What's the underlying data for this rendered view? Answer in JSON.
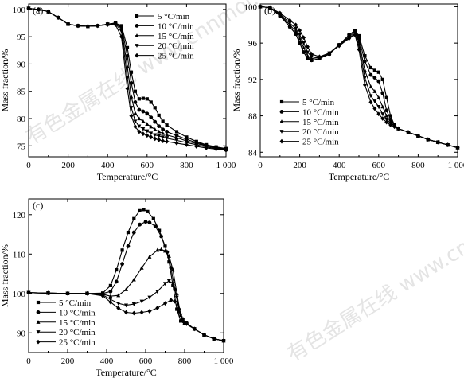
{
  "watermark": "有色金属在线 www.cnnmol.com",
  "chart_data": [
    {
      "type": "line",
      "panel_label": "(a)",
      "xlabel": "Temperature/°C",
      "ylabel": "Mass fraction/%",
      "xlim": [
        0,
        1000
      ],
      "ylim": [
        73,
        101
      ],
      "x_ticks": [
        "0",
        "200",
        "400",
        "600",
        "800",
        "1 000"
      ],
      "y_ticks": [
        "75",
        "80",
        "85",
        "90",
        "95",
        "100"
      ],
      "legend_position": "top-right",
      "series": [
        {
          "name": "5 °C/min",
          "marker": "square",
          "x": [
            0,
            50,
            100,
            150,
            200,
            250,
            300,
            350,
            400,
            440,
            470,
            500,
            520,
            540,
            560,
            580,
            600,
            620,
            640,
            660,
            680,
            700,
            750,
            800,
            850,
            900,
            950,
            1000
          ],
          "y": [
            100.2,
            100.0,
            99.6,
            98.5,
            97.3,
            97.0,
            96.9,
            97.0,
            97.3,
            97.5,
            97.0,
            93.0,
            88.5,
            85.0,
            83.6,
            83.7,
            83.6,
            83.0,
            82.0,
            80.6,
            79.5,
            78.8,
            77.6,
            76.6,
            75.8,
            75.2,
            74.8,
            74.5
          ]
        },
        {
          "name": "10 °C/min",
          "marker": "circle",
          "x": [
            0,
            50,
            100,
            150,
            200,
            250,
            300,
            350,
            400,
            440,
            470,
            500,
            520,
            540,
            560,
            580,
            600,
            620,
            640,
            660,
            680,
            700,
            750,
            800,
            850,
            900,
            950,
            1000
          ],
          "y": [
            100.2,
            100.0,
            99.6,
            98.5,
            97.3,
            97.0,
            96.9,
            97.0,
            97.3,
            97.5,
            96.8,
            91.5,
            86.5,
            83.0,
            81.6,
            81.3,
            80.9,
            80.2,
            79.4,
            78.6,
            78.0,
            77.6,
            76.9,
            76.2,
            75.6,
            75.1,
            74.7,
            74.4
          ]
        },
        {
          "name": "15 °C/min",
          "marker": "triangle-up",
          "x": [
            0,
            50,
            100,
            150,
            200,
            250,
            300,
            350,
            400,
            440,
            470,
            500,
            520,
            540,
            560,
            580,
            600,
            620,
            640,
            660,
            680,
            700,
            750,
            800,
            850,
            900,
            950,
            1000
          ],
          "y": [
            100.2,
            100.0,
            99.6,
            98.5,
            97.3,
            97.0,
            96.9,
            97.0,
            97.3,
            97.5,
            96.5,
            89.5,
            84.0,
            81.0,
            80.0,
            79.5,
            79.0,
            78.5,
            78.0,
            77.6,
            77.3,
            77.0,
            76.5,
            75.9,
            75.4,
            75.0,
            74.6,
            74.3
          ]
        },
        {
          "name": "20 °C/min",
          "marker": "triangle-down",
          "x": [
            0,
            50,
            100,
            150,
            200,
            250,
            300,
            350,
            400,
            440,
            470,
            500,
            520,
            540,
            560,
            580,
            600,
            620,
            640,
            660,
            680,
            700,
            750,
            800,
            850,
            900,
            950,
            1000
          ],
          "y": [
            100.2,
            100.0,
            99.6,
            98.5,
            97.3,
            97.0,
            96.9,
            97.0,
            97.3,
            97.4,
            96.0,
            87.5,
            82.0,
            79.5,
            78.6,
            78.1,
            77.7,
            77.3,
            77.0,
            76.8,
            76.6,
            76.4,
            76.0,
            75.6,
            75.2,
            74.8,
            74.5,
            74.2
          ]
        },
        {
          "name": "25 °C/min",
          "marker": "diamond",
          "x": [
            0,
            50,
            100,
            150,
            200,
            250,
            300,
            350,
            400,
            440,
            470,
            500,
            520,
            540,
            560,
            580,
            600,
            620,
            640,
            660,
            680,
            700,
            750,
            800,
            850,
            900,
            950,
            1000
          ],
          "y": [
            100.2,
            100.0,
            99.6,
            98.5,
            97.3,
            97.0,
            96.9,
            97.0,
            97.2,
            97.2,
            95.0,
            85.5,
            80.5,
            78.5,
            77.6,
            77.2,
            76.9,
            76.6,
            76.3,
            76.1,
            75.9,
            75.8,
            75.5,
            75.2,
            74.9,
            74.6,
            74.4,
            74.2
          ]
        }
      ]
    },
    {
      "type": "line",
      "panel_label": "(b)",
      "xlabel": "Temperature/°C",
      "ylabel": "Mass fraction/%",
      "xlim": [
        0,
        1000
      ],
      "ylim": [
        83.5,
        100.3
      ],
      "x_ticks": [
        "0",
        "200",
        "400",
        "600",
        "800",
        "1 000"
      ],
      "y_ticks": [
        "84",
        "88",
        "92",
        "96",
        "100"
      ],
      "legend_position": "bottom-left",
      "series": [
        {
          "name": "5 °C/min",
          "marker": "square",
          "x": [
            0,
            50,
            100,
            150,
            180,
            200,
            220,
            240,
            260,
            300,
            350,
            400,
            450,
            480,
            500,
            530,
            560,
            580,
            600,
            620,
            640,
            660,
            680,
            700,
            750,
            800,
            850,
            900,
            950,
            1000
          ],
          "y": [
            100.0,
            99.9,
            99.0,
            97.8,
            97.0,
            96.0,
            95.0,
            94.3,
            94.1,
            94.3,
            94.8,
            95.8,
            96.9,
            97.4,
            96.8,
            94.6,
            93.3,
            93.0,
            92.8,
            92.0,
            90.0,
            88.0,
            87.0,
            86.6,
            86.2,
            85.8,
            85.4,
            85.1,
            84.8,
            84.5
          ]
        },
        {
          "name": "10 °C/min",
          "marker": "circle",
          "x": [
            0,
            50,
            100,
            150,
            180,
            200,
            220,
            240,
            260,
            300,
            350,
            400,
            450,
            480,
            500,
            530,
            560,
            580,
            600,
            620,
            640,
            660,
            680,
            700,
            750,
            800,
            850,
            900,
            950,
            1000
          ],
          "y": [
            100.0,
            99.9,
            99.0,
            97.8,
            97.0,
            96.0,
            95.0,
            94.3,
            94.1,
            94.3,
            94.8,
            95.8,
            96.9,
            97.3,
            96.5,
            94.0,
            92.5,
            92.2,
            91.8,
            90.5,
            88.6,
            87.6,
            87.0,
            86.6,
            86.2,
            85.8,
            85.4,
            85.1,
            84.8,
            84.5
          ]
        },
        {
          "name": "15 °C/min",
          "marker": "triangle-up",
          "x": [
            0,
            50,
            100,
            150,
            180,
            200,
            220,
            240,
            260,
            300,
            350,
            400,
            450,
            480,
            500,
            530,
            560,
            580,
            600,
            620,
            640,
            660,
            680,
            700,
            750,
            800,
            850,
            900,
            950,
            1000
          ],
          "y": [
            100.0,
            99.9,
            99.1,
            98.0,
            97.3,
            96.5,
            95.5,
            94.6,
            94.3,
            94.4,
            94.9,
            95.8,
            96.7,
            97.2,
            96.2,
            93.0,
            91.2,
            90.7,
            90.0,
            89.0,
            88.0,
            87.4,
            87.0,
            86.6,
            86.2,
            85.8,
            85.4,
            85.1,
            84.8,
            84.5
          ]
        },
        {
          "name": "20 °C/min",
          "marker": "triangle-down",
          "x": [
            0,
            50,
            100,
            150,
            180,
            200,
            220,
            240,
            260,
            300,
            350,
            400,
            450,
            480,
            500,
            530,
            560,
            580,
            600,
            620,
            640,
            660,
            680,
            700,
            750,
            800,
            850,
            900,
            950,
            1000
          ],
          "y": [
            100.0,
            99.9,
            99.2,
            98.2,
            97.6,
            96.9,
            96.0,
            95.0,
            94.5,
            94.4,
            94.9,
            95.8,
            96.6,
            97.0,
            95.8,
            92.2,
            90.2,
            89.6,
            89.0,
            88.2,
            87.6,
            87.2,
            86.9,
            86.6,
            86.2,
            85.8,
            85.4,
            85.1,
            84.8,
            84.5
          ]
        },
        {
          "name": "25 °C/min",
          "marker": "diamond",
          "x": [
            0,
            50,
            100,
            150,
            180,
            200,
            220,
            240,
            260,
            300,
            350,
            400,
            450,
            480,
            500,
            530,
            560,
            580,
            600,
            620,
            640,
            660,
            680,
            700,
            750,
            800,
            850,
            900,
            950,
            1000
          ],
          "y": [
            100.0,
            99.9,
            99.3,
            98.5,
            98.0,
            97.4,
            96.6,
            95.6,
            94.8,
            94.5,
            94.9,
            95.7,
            96.5,
            96.9,
            95.3,
            91.4,
            89.5,
            88.8,
            88.2,
            87.7,
            87.3,
            87.0,
            86.8,
            86.6,
            86.2,
            85.8,
            85.4,
            85.1,
            84.8,
            84.5
          ]
        }
      ]
    },
    {
      "type": "line",
      "panel_label": "(c)",
      "xlabel": "Temperature/°C",
      "ylabel": "Mass fraction/%",
      "xlim": [
        0,
        1000
      ],
      "ylim": [
        85,
        124
      ],
      "x_ticks": [
        "0",
        "200",
        "400",
        "600",
        "800",
        "1 000"
      ],
      "y_ticks": [
        "90",
        "100",
        "110",
        "120"
      ],
      "legend_position": "bottom-left",
      "series": [
        {
          "name": "5 °C/min",
          "marker": "square",
          "x": [
            0,
            100,
            200,
            300,
            380,
            420,
            450,
            480,
            510,
            540,
            570,
            590,
            610,
            640,
            670,
            700,
            720,
            740,
            760,
            780,
            800,
            850,
            900,
            950,
            1000
          ],
          "y": [
            100.2,
            100.1,
            100.0,
            100.0,
            100.1,
            102.0,
            106.0,
            111.0,
            115.5,
            119.0,
            121.0,
            121.3,
            120.8,
            119.0,
            116.0,
            112.0,
            108.0,
            102.0,
            96.0,
            93.0,
            92.5,
            91.0,
            89.5,
            88.5,
            88.0
          ]
        },
        {
          "name": "10 °C/min",
          "marker": "circle",
          "x": [
            0,
            100,
            200,
            300,
            380,
            420,
            450,
            480,
            510,
            540,
            570,
            600,
            620,
            650,
            680,
            710,
            730,
            750,
            770,
            790,
            810,
            850,
            900,
            950,
            1000
          ],
          "y": [
            100.2,
            100.1,
            100.0,
            100.0,
            100.0,
            100.5,
            103.0,
            107.5,
            112.0,
            115.5,
            117.5,
            118.2,
            118.0,
            117.0,
            114.5,
            110.5,
            106.5,
            101.0,
            96.0,
            93.5,
            92.5,
            91.0,
            89.5,
            88.5,
            88.0
          ]
        },
        {
          "name": "15 °C/min",
          "marker": "triangle-up",
          "x": [
            0,
            100,
            200,
            300,
            380,
            420,
            460,
            500,
            540,
            580,
            620,
            660,
            680,
            700,
            720,
            740,
            760,
            780,
            800,
            850,
            900,
            950,
            1000
          ],
          "y": [
            100.2,
            100.1,
            100.0,
            100.0,
            99.8,
            99.3,
            99.5,
            101.0,
            103.5,
            106.5,
            109.3,
            111.0,
            111.2,
            110.8,
            109.5,
            106.0,
            100.0,
            94.5,
            92.5,
            91.0,
            89.5,
            88.5,
            88.0
          ]
        },
        {
          "name": "20 °C/min",
          "marker": "triangle-down",
          "x": [
            0,
            100,
            200,
            300,
            380,
            420,
            460,
            500,
            540,
            580,
            620,
            660,
            700,
            720,
            740,
            760,
            780,
            800,
            850,
            900,
            950,
            1000
          ],
          "y": [
            100.2,
            100.1,
            100.0,
            100.0,
            99.6,
            98.5,
            97.5,
            97.0,
            97.3,
            98.0,
            99.0,
            100.5,
            102.5,
            103.2,
            102.5,
            99.0,
            94.5,
            92.5,
            91.0,
            89.5,
            88.5,
            88.0
          ]
        },
        {
          "name": "25 °C/min",
          "marker": "diamond",
          "x": [
            0,
            100,
            200,
            300,
            380,
            420,
            460,
            500,
            540,
            580,
            620,
            660,
            700,
            730,
            750,
            770,
            790,
            810,
            850,
            900,
            950,
            1000
          ],
          "y": [
            100.2,
            100.1,
            100.0,
            100.0,
            99.4,
            97.8,
            96.3,
            95.2,
            95.0,
            95.2,
            95.5,
            96.3,
            97.5,
            98.3,
            98.0,
            95.5,
            93.0,
            92.3,
            91.0,
            89.5,
            88.5,
            88.0
          ]
        }
      ]
    }
  ]
}
